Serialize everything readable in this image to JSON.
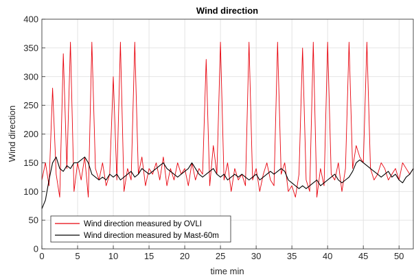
{
  "chart_data": {
    "type": "line",
    "title": "Wind direction",
    "xlabel": "time min",
    "ylabel": "Wind direction",
    "xlim": [
      0,
      52
    ],
    "ylim": [
      0,
      400
    ],
    "xticks": [
      0,
      5,
      10,
      15,
      20,
      25,
      30,
      35,
      40,
      45,
      50
    ],
    "yticks": [
      0,
      50,
      100,
      150,
      200,
      250,
      300,
      350,
      400
    ],
    "grid": true,
    "legend_position": "bottom-left",
    "series": [
      {
        "name": "Wind direction measured by OVLI",
        "color": "#e8000b",
        "x": [
          0,
          0.5,
          1,
          1.5,
          2,
          2.5,
          3,
          3.5,
          4,
          4.5,
          5,
          5.5,
          6,
          6.5,
          7,
          7.5,
          8,
          8.5,
          9,
          9.5,
          10,
          10.5,
          11,
          11.5,
          12,
          12.5,
          13,
          13.5,
          14,
          14.5,
          15,
          15.5,
          16,
          16.5,
          17,
          17.5,
          18,
          18.5,
          19,
          19.5,
          20,
          20.5,
          21,
          21.5,
          22,
          22.5,
          23,
          23.5,
          24,
          24.5,
          25,
          25.5,
          26,
          26.5,
          27,
          27.5,
          28,
          28.5,
          29,
          29.5,
          30,
          30.5,
          31,
          31.5,
          32,
          32.5,
          33,
          33.5,
          34,
          34.5,
          35,
          35.5,
          36,
          36.5,
          37,
          37.5,
          38,
          38.5,
          39,
          39.5,
          40,
          40.5,
          41,
          41.5,
          42,
          42.5,
          43,
          43.5,
          44,
          44.5,
          45,
          45.5,
          46,
          46.5,
          47,
          47.5,
          48,
          48.5,
          49,
          49.5,
          50,
          50.5,
          51,
          51.5,
          52
        ],
        "values": [
          120,
          150,
          110,
          280,
          130,
          90,
          340,
          140,
          360,
          100,
          150,
          120,
          160,
          90,
          360,
          140,
          120,
          150,
          110,
          130,
          300,
          120,
          360,
          100,
          140,
          120,
          360,
          130,
          160,
          110,
          140,
          130,
          150,
          120,
          160,
          110,
          140,
          120,
          150,
          130,
          140,
          110,
          150,
          120,
          140,
          130,
          330,
          110,
          180,
          130,
          360,
          120,
          150,
          100,
          140,
          120,
          130,
          110,
          360,
          120,
          140,
          100,
          130,
          150,
          120,
          110,
          360,
          130,
          150,
          100,
          110,
          90,
          130,
          350,
          120,
          100,
          360,
          90,
          140,
          110,
          360,
          130,
          120,
          150,
          100,
          140,
          360,
          140,
          180,
          160,
          150,
          360,
          140,
          120,
          130,
          150,
          140,
          120,
          130,
          140,
          120,
          150,
          140,
          130,
          140
        ]
      },
      {
        "name": "Wind direction measured by Mast-60m",
        "color": "#000000",
        "x": [
          0,
          0.5,
          1,
          1.5,
          2,
          2.5,
          3,
          3.5,
          4,
          4.5,
          5,
          5.5,
          6,
          6.5,
          7,
          7.5,
          8,
          8.5,
          9,
          9.5,
          10,
          10.5,
          11,
          11.5,
          12,
          12.5,
          13,
          13.5,
          14,
          14.5,
          15,
          15.5,
          16,
          16.5,
          17,
          17.5,
          18,
          18.5,
          19,
          19.5,
          20,
          20.5,
          21,
          21.5,
          22,
          22.5,
          23,
          23.5,
          24,
          24.5,
          25,
          25.5,
          26,
          26.5,
          27,
          27.5,
          28,
          28.5,
          29,
          29.5,
          30,
          30.5,
          31,
          31.5,
          32,
          32.5,
          33,
          33.5,
          34,
          34.5,
          35,
          35.5,
          36,
          36.5,
          37,
          37.5,
          38,
          38.5,
          39,
          39.5,
          40,
          40.5,
          41,
          41.5,
          42,
          42.5,
          43,
          43.5,
          44,
          44.5,
          45,
          45.5,
          46,
          46.5,
          47,
          47.5,
          48,
          48.5,
          49,
          49.5,
          50,
          50.5,
          51,
          51.5,
          52
        ],
        "values": [
          70,
          85,
          120,
          150,
          160,
          140,
          135,
          145,
          140,
          150,
          150,
          155,
          160,
          150,
          130,
          125,
          120,
          125,
          120,
          130,
          125,
          130,
          120,
          125,
          130,
          135,
          125,
          130,
          140,
          135,
          130,
          135,
          140,
          145,
          150,
          140,
          135,
          130,
          125,
          130,
          135,
          140,
          150,
          140,
          130,
          125,
          130,
          135,
          140,
          130,
          125,
          130,
          120,
          125,
          130,
          125,
          130,
          125,
          120,
          125,
          130,
          120,
          125,
          130,
          135,
          130,
          135,
          140,
          135,
          120,
          115,
          110,
          105,
          110,
          105,
          110,
          115,
          120,
          110,
          115,
          120,
          125,
          130,
          120,
          115,
          120,
          125,
          135,
          150,
          155,
          150,
          145,
          140,
          135,
          130,
          125,
          130,
          135,
          125,
          130,
          120,
          115,
          125,
          130,
          140
        ]
      }
    ]
  }
}
